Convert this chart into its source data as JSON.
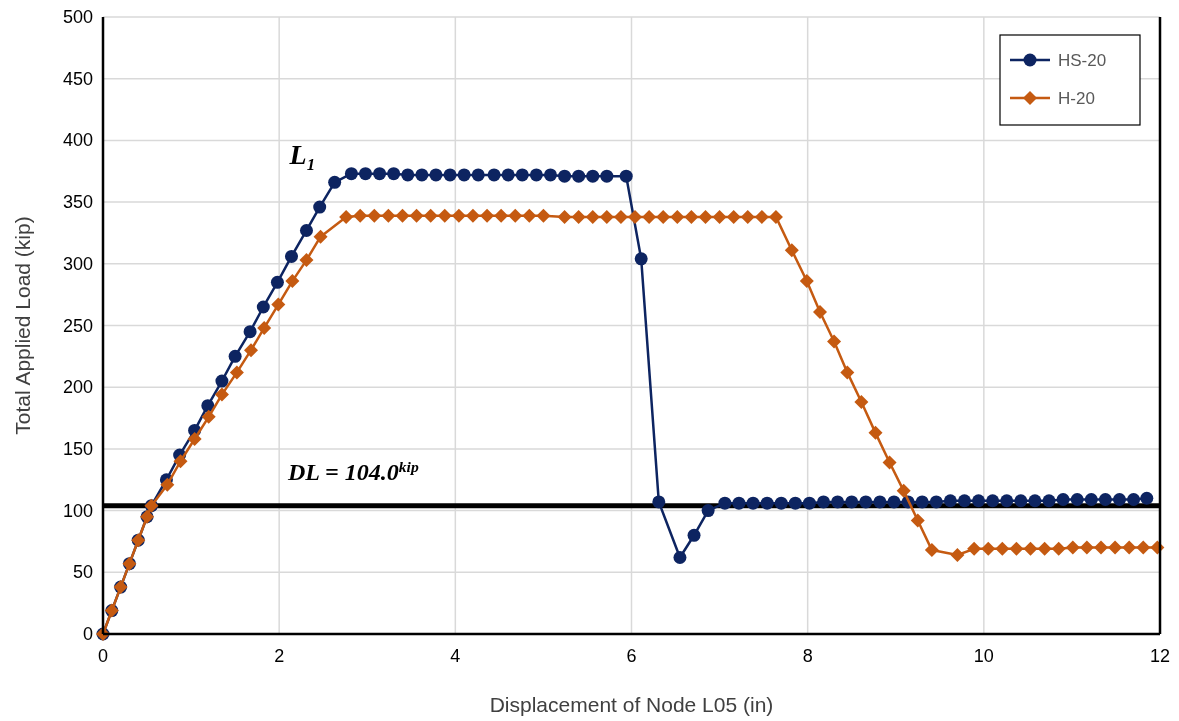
{
  "chart_data": {
    "type": "line",
    "xlabel": "Displacement of Node L05 (in)",
    "ylabel": "Total Applied Load (kip)",
    "xlim": [
      0,
      12
    ],
    "xticks": [
      0,
      2,
      4,
      6,
      8,
      10,
      12
    ],
    "ylim": [
      0,
      500
    ],
    "yticks": [
      0,
      50,
      100,
      150,
      200,
      250,
      300,
      350,
      400,
      450,
      500
    ],
    "grid": true,
    "legend": "top right",
    "line_style": "solid",
    "ref_lines": [
      {
        "axis": "y",
        "value": 104,
        "label": "DL = 104.0$^{kip}$",
        "color": "#000000"
      }
    ],
    "annotations": [
      {
        "text": "L₁",
        "x": 2.82,
        "y": 373
      }
    ],
    "series": [
      {
        "name": "HS-20",
        "color": "#0d2461",
        "marker": "circle",
        "x": [
          0,
          0.1,
          0.2,
          0.3,
          0.4,
          0.5,
          0.55,
          0.72,
          0.87,
          1.04,
          1.19,
          1.35,
          1.5,
          1.67,
          1.82,
          1.98,
          2.14,
          2.31,
          2.46,
          2.63,
          2.82,
          2.98,
          3.14,
          3.3,
          3.46,
          3.62,
          3.78,
          3.94,
          4.1,
          4.26,
          4.44,
          4.6,
          4.76,
          4.92,
          5.08,
          5.24,
          5.4,
          5.56,
          5.72,
          5.94,
          6.11,
          6.31,
          6.55,
          6.71,
          6.87,
          7.06,
          7.22,
          7.38,
          7.54,
          7.7,
          7.86,
          8.02,
          8.18,
          8.34,
          8.5,
          8.66,
          8.82,
          8.98,
          9.14,
          9.3,
          9.46,
          9.62,
          9.78,
          9.94,
          10.1,
          10.26,
          10.42,
          10.58,
          10.74,
          10.9,
          11.06,
          11.22,
          11.38,
          11.54,
          11.7,
          11.85
        ],
        "values": [
          0,
          19,
          38,
          57,
          76,
          95,
          104,
          125,
          145,
          165,
          185,
          205,
          225,
          245,
          265,
          285,
          306,
          327,
          346,
          366,
          373,
          373,
          373,
          373,
          372,
          372,
          372,
          372,
          372,
          372,
          372,
          372,
          372,
          372,
          372,
          371,
          371,
          371,
          371,
          371,
          304,
          107,
          62,
          80,
          100,
          106,
          106,
          106,
          106,
          106,
          106,
          106,
          107,
          107,
          107,
          107,
          107,
          107,
          107,
          107,
          107,
          108,
          108,
          108,
          108,
          108,
          108,
          108,
          108,
          109,
          109,
          109,
          109,
          109,
          109,
          110
        ]
      },
      {
        "name": "H-20",
        "color": "#c55a11",
        "marker": "diamond",
        "x": [
          0,
          0.1,
          0.2,
          0.3,
          0.4,
          0.5,
          0.55,
          0.73,
          0.88,
          1.04,
          1.2,
          1.35,
          1.52,
          1.68,
          1.83,
          1.99,
          2.15,
          2.31,
          2.47,
          2.76,
          2.92,
          3.08,
          3.24,
          3.4,
          3.56,
          3.72,
          3.88,
          4.04,
          4.2,
          4.36,
          4.52,
          4.68,
          4.84,
          5.0,
          5.24,
          5.4,
          5.56,
          5.72,
          5.88,
          6.04,
          6.2,
          6.36,
          6.52,
          6.68,
          6.84,
          7.0,
          7.16,
          7.32,
          7.48,
          7.64,
          7.82,
          7.99,
          8.14,
          8.3,
          8.45,
          8.61,
          8.77,
          8.93,
          9.09,
          9.25,
          9.41,
          9.7,
          9.89,
          10.05,
          10.21,
          10.37,
          10.53,
          10.69,
          10.85,
          11.01,
          11.17,
          11.33,
          11.49,
          11.65,
          11.81,
          11.97
        ],
        "values": [
          0,
          19,
          38,
          57,
          76,
          95,
          104,
          121,
          140,
          158,
          176,
          194,
          212,
          230,
          248,
          267,
          286,
          303,
          322,
          338,
          339,
          339,
          339,
          339,
          339,
          339,
          339,
          339,
          339,
          339,
          339,
          339,
          339,
          339,
          338,
          338,
          338,
          338,
          338,
          338,
          338,
          338,
          338,
          338,
          338,
          338,
          338,
          338,
          338,
          338,
          311,
          286,
          261,
          237,
          212,
          188,
          163,
          139,
          116,
          92,
          68,
          64,
          69,
          69,
          69,
          69,
          69,
          69,
          69,
          70,
          70,
          70,
          70,
          70,
          70,
          70
        ]
      }
    ]
  }
}
